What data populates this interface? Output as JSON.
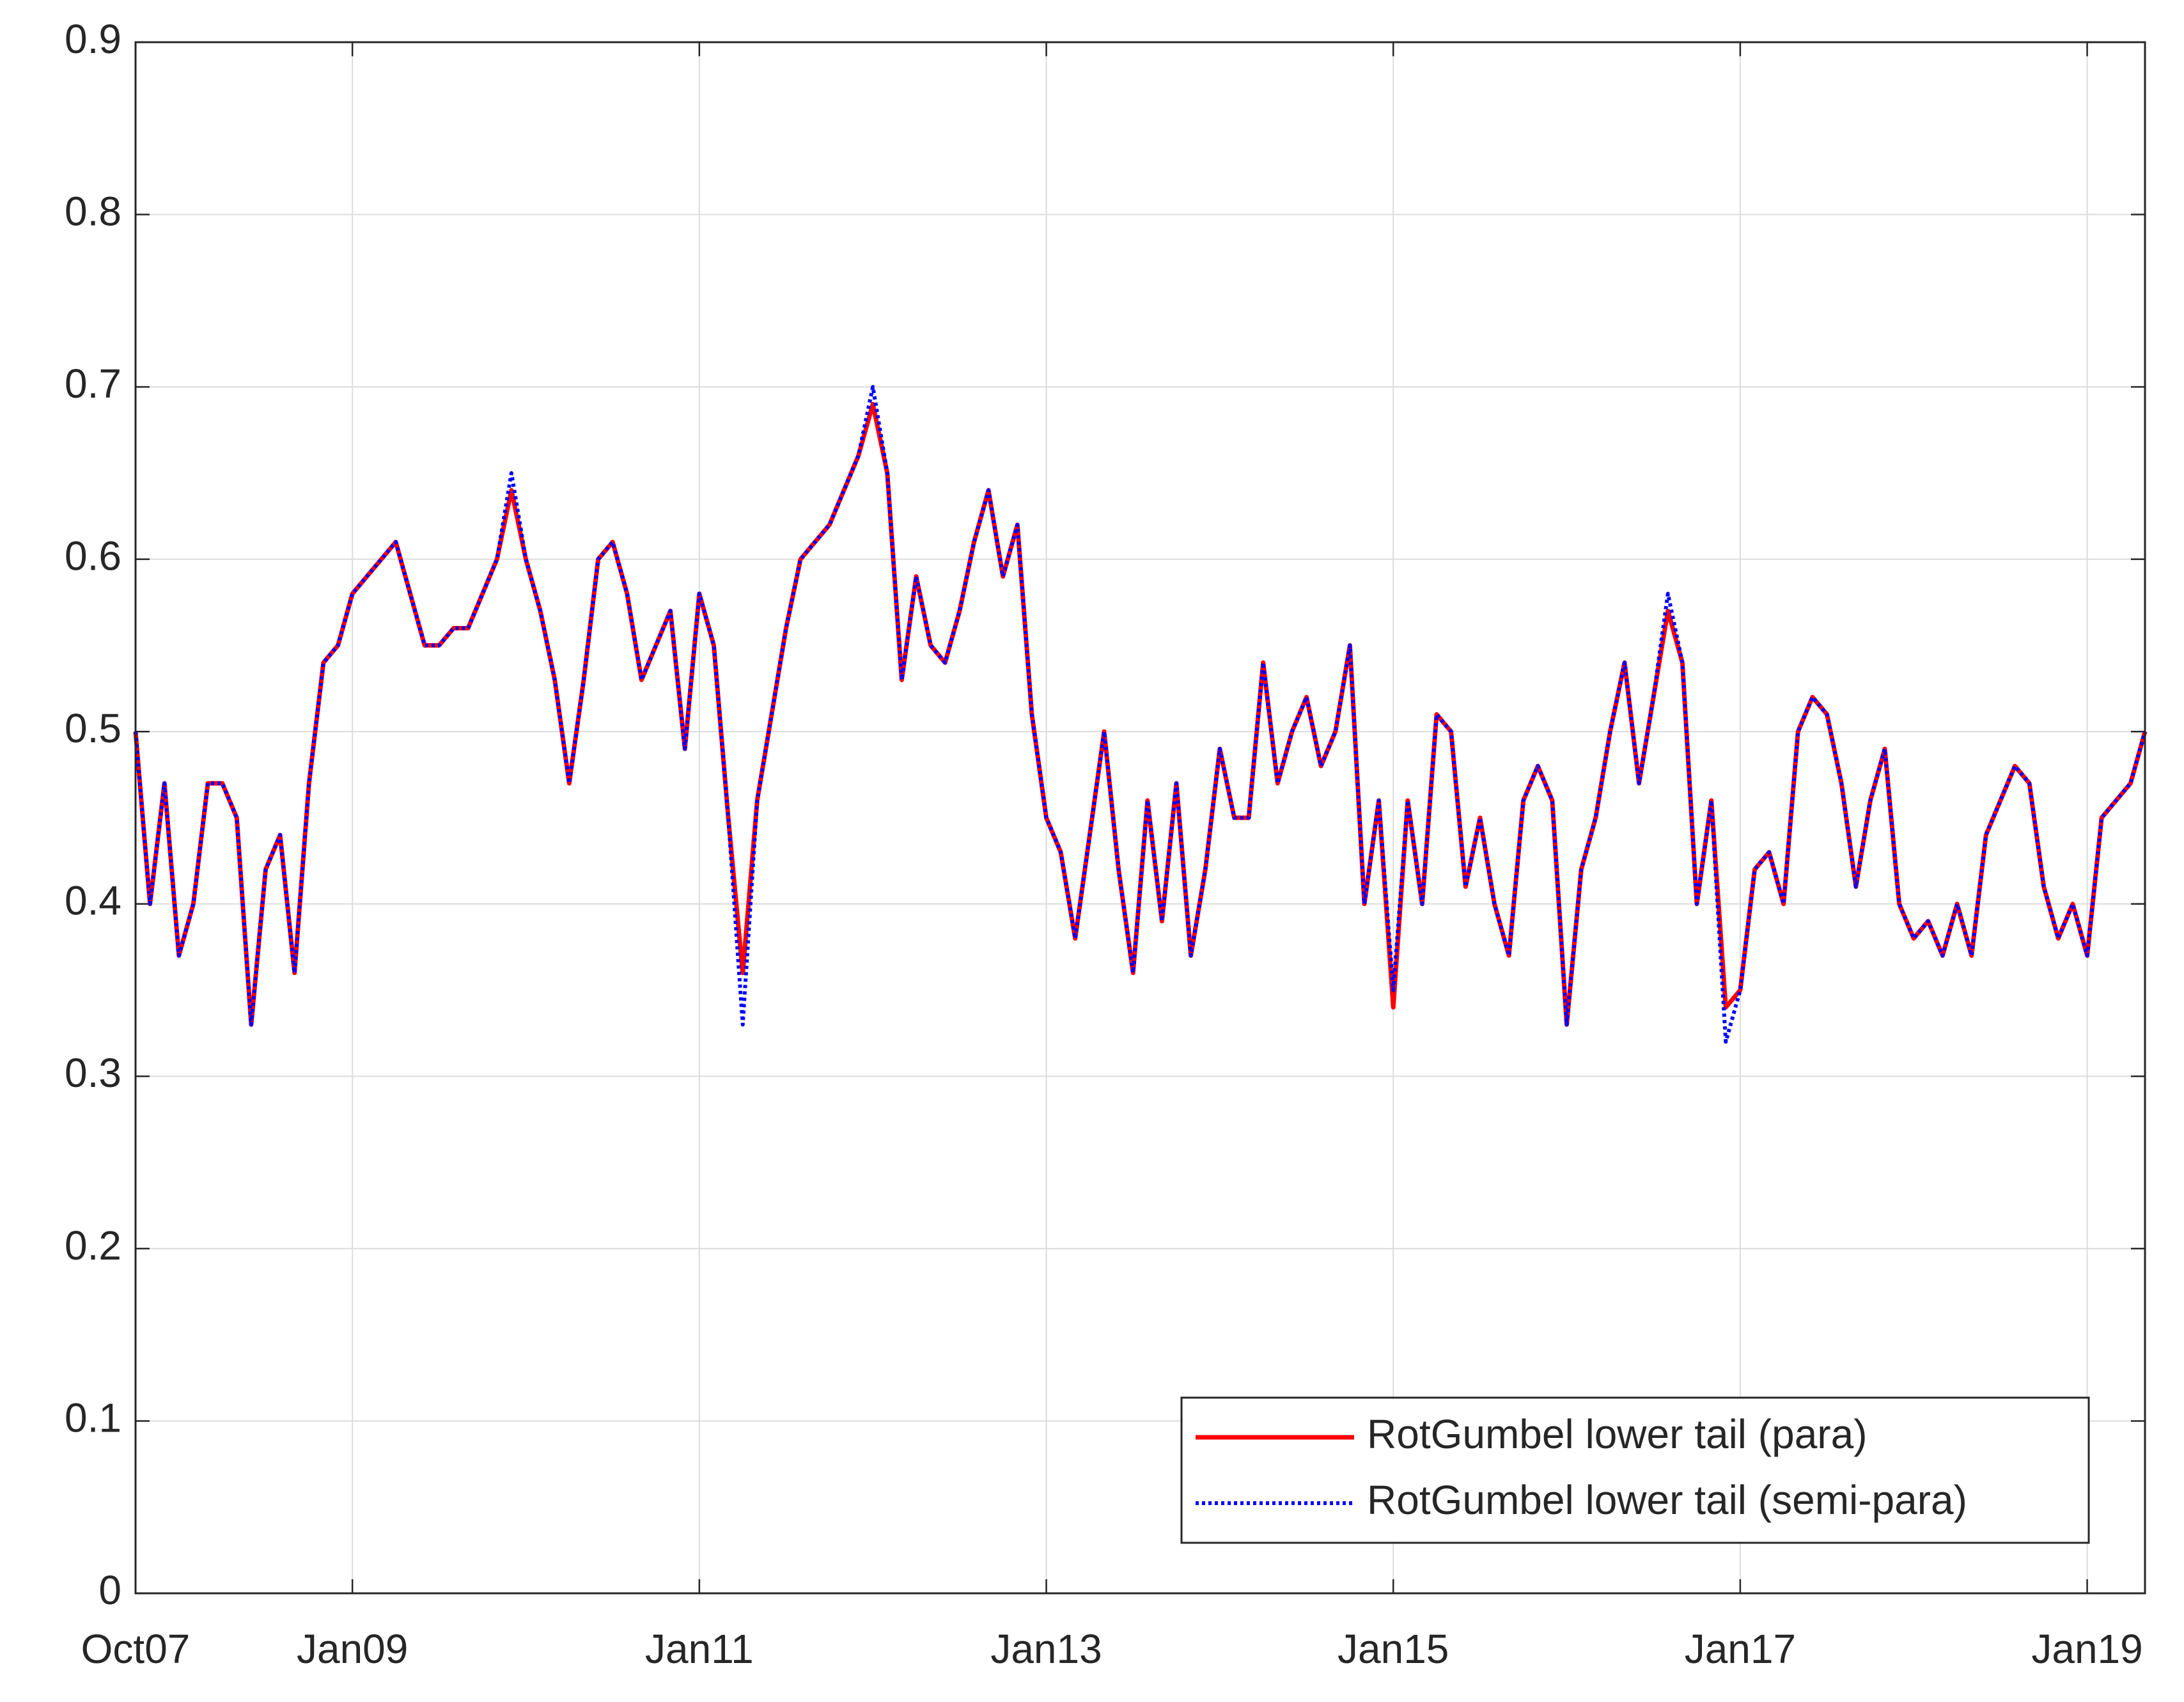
{
  "chart_data": {
    "type": "line",
    "x": [
      "2007-10",
      "2007-11",
      "2007-12",
      "2008-01",
      "2008-02",
      "2008-03",
      "2008-04",
      "2008-05",
      "2008-06",
      "2008-07",
      "2008-08",
      "2008-09",
      "2008-10",
      "2008-11",
      "2008-12",
      "2009-01",
      "2009-02",
      "2009-03",
      "2009-04",
      "2009-05",
      "2009-06",
      "2009-07",
      "2009-08",
      "2009-09",
      "2009-10",
      "2009-11",
      "2009-12",
      "2010-01",
      "2010-02",
      "2010-03",
      "2010-04",
      "2010-05",
      "2010-06",
      "2010-07",
      "2010-08",
      "2010-09",
      "2010-10",
      "2010-11",
      "2010-12",
      "2011-01",
      "2011-02",
      "2011-03",
      "2011-04",
      "2011-05",
      "2011-06",
      "2011-07",
      "2011-08",
      "2011-09",
      "2011-10",
      "2011-11",
      "2011-12",
      "2012-01",
      "2012-02",
      "2012-03",
      "2012-04",
      "2012-05",
      "2012-06",
      "2012-07",
      "2012-08",
      "2012-09",
      "2012-10",
      "2012-11",
      "2012-12",
      "2013-01",
      "2013-02",
      "2013-03",
      "2013-04",
      "2013-05",
      "2013-06",
      "2013-07",
      "2013-08",
      "2013-09",
      "2013-10",
      "2013-11",
      "2013-12",
      "2014-01",
      "2014-02",
      "2014-03",
      "2014-04",
      "2014-05",
      "2014-06",
      "2014-07",
      "2014-08",
      "2014-09",
      "2014-10",
      "2014-11",
      "2014-12",
      "2015-01",
      "2015-02",
      "2015-03",
      "2015-04",
      "2015-05",
      "2015-06",
      "2015-07",
      "2015-08",
      "2015-09",
      "2015-10",
      "2015-11",
      "2015-12",
      "2016-01",
      "2016-02",
      "2016-03",
      "2016-04",
      "2016-05",
      "2016-06",
      "2016-07",
      "2016-08",
      "2016-09",
      "2016-10",
      "2016-11",
      "2016-12",
      "2017-01",
      "2017-02",
      "2017-03",
      "2017-04",
      "2017-05",
      "2017-06",
      "2017-07",
      "2017-08",
      "2017-09",
      "2017-10",
      "2017-11",
      "2017-12",
      "2018-01",
      "2018-02",
      "2018-03",
      "2018-04",
      "2018-05",
      "2018-06",
      "2018-07",
      "2018-08",
      "2018-09",
      "2018-10",
      "2018-11",
      "2018-12",
      "2019-01",
      "2019-02",
      "2019-03",
      "2019-04",
      "2019-05"
    ],
    "series": [
      {
        "name": "RotGumbel lower tail (para)",
        "color": "#ff0000",
        "style": "solid",
        "values": [
          0.5,
          0.4,
          0.47,
          0.37,
          0.4,
          0.47,
          0.47,
          0.45,
          0.33,
          0.42,
          0.44,
          0.36,
          0.47,
          0.54,
          0.55,
          0.58,
          0.59,
          0.6,
          0.61,
          0.58,
          0.55,
          0.55,
          0.56,
          0.56,
          0.58,
          0.6,
          0.64,
          0.6,
          0.57,
          0.53,
          0.47,
          0.53,
          0.6,
          0.61,
          0.58,
          0.53,
          0.55,
          0.57,
          0.49,
          0.58,
          0.55,
          0.45,
          0.36,
          0.46,
          0.51,
          0.56,
          0.6,
          0.61,
          0.62,
          0.64,
          0.66,
          0.69,
          0.65,
          0.53,
          0.59,
          0.55,
          0.54,
          0.57,
          0.61,
          0.64,
          0.59,
          0.62,
          0.51,
          0.45,
          0.43,
          0.38,
          0.44,
          0.5,
          0.42,
          0.36,
          0.46,
          0.39,
          0.47,
          0.37,
          0.42,
          0.49,
          0.45,
          0.45,
          0.54,
          0.47,
          0.5,
          0.52,
          0.48,
          0.5,
          0.55,
          0.4,
          0.46,
          0.34,
          0.46,
          0.4,
          0.51,
          0.5,
          0.41,
          0.45,
          0.4,
          0.37,
          0.46,
          0.48,
          0.46,
          0.33,
          0.42,
          0.45,
          0.5,
          0.54,
          0.47,
          0.52,
          0.57,
          0.54,
          0.4,
          0.46,
          0.34,
          0.35,
          0.42,
          0.43,
          0.4,
          0.5,
          0.52,
          0.51,
          0.47,
          0.41,
          0.46,
          0.49,
          0.4,
          0.38,
          0.39,
          0.37,
          0.4,
          0.37,
          0.44,
          0.46,
          0.48,
          0.47,
          0.41,
          0.38,
          0.4,
          0.37,
          0.45,
          0.46,
          0.47,
          0.5
        ]
      },
      {
        "name": "RotGumbel lower tail (semi-para)",
        "color": "#0000ff",
        "style": "dotted",
        "values": [
          0.5,
          0.4,
          0.47,
          0.37,
          0.4,
          0.47,
          0.47,
          0.45,
          0.33,
          0.42,
          0.44,
          0.36,
          0.47,
          0.54,
          0.55,
          0.58,
          0.59,
          0.6,
          0.61,
          0.58,
          0.55,
          0.55,
          0.56,
          0.56,
          0.58,
          0.6,
          0.65,
          0.6,
          0.57,
          0.53,
          0.47,
          0.53,
          0.6,
          0.61,
          0.58,
          0.53,
          0.55,
          0.57,
          0.49,
          0.58,
          0.55,
          0.45,
          0.33,
          0.46,
          0.51,
          0.56,
          0.6,
          0.61,
          0.62,
          0.64,
          0.66,
          0.7,
          0.65,
          0.53,
          0.59,
          0.55,
          0.54,
          0.57,
          0.61,
          0.64,
          0.59,
          0.62,
          0.51,
          0.45,
          0.43,
          0.38,
          0.44,
          0.5,
          0.42,
          0.36,
          0.46,
          0.39,
          0.47,
          0.37,
          0.42,
          0.49,
          0.45,
          0.45,
          0.54,
          0.47,
          0.5,
          0.52,
          0.48,
          0.5,
          0.55,
          0.4,
          0.46,
          0.35,
          0.46,
          0.4,
          0.51,
          0.5,
          0.41,
          0.45,
          0.4,
          0.37,
          0.46,
          0.48,
          0.46,
          0.33,
          0.42,
          0.45,
          0.5,
          0.54,
          0.47,
          0.52,
          0.58,
          0.54,
          0.4,
          0.46,
          0.32,
          0.35,
          0.42,
          0.43,
          0.4,
          0.5,
          0.52,
          0.51,
          0.47,
          0.41,
          0.46,
          0.49,
          0.4,
          0.38,
          0.39,
          0.37,
          0.4,
          0.37,
          0.44,
          0.46,
          0.48,
          0.47,
          0.41,
          0.38,
          0.4,
          0.37,
          0.45,
          0.46,
          0.47,
          0.5
        ]
      }
    ],
    "xlim": [
      "2007-10",
      "2019-05"
    ],
    "xticks": [
      {
        "value": "2007-10",
        "label": "Oct07"
      },
      {
        "value": "2009-01",
        "label": "Jan09"
      },
      {
        "value": "2011-01",
        "label": "Jan11"
      },
      {
        "value": "2013-01",
        "label": "Jan13"
      },
      {
        "value": "2015-01",
        "label": "Jan15"
      },
      {
        "value": "2017-01",
        "label": "Jan17"
      },
      {
        "value": "2019-01",
        "label": "Jan19"
      }
    ],
    "ylim": [
      0,
      0.9
    ],
    "yticks": [
      0,
      0.1,
      0.2,
      0.3,
      0.4,
      0.5,
      0.6,
      0.7,
      0.8,
      0.9
    ],
    "grid": true,
    "legend": "lower right"
  }
}
